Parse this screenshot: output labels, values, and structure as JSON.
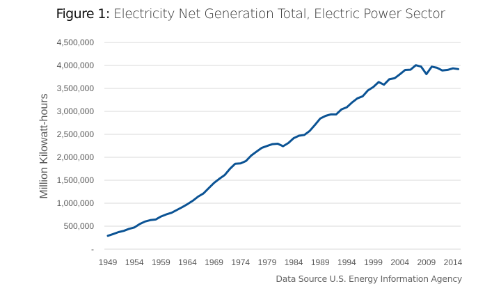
{
  "title": {
    "lead": "Figure 1:",
    "rest": " Electricity Net Generation Total, Electric Power Sector"
  },
  "source": "Data Source U.S. Energy Information Agency",
  "colors": {
    "line": "#0b5394",
    "grid": "#d9d9d9",
    "text": "#595959"
  },
  "chart_data": {
    "type": "line",
    "title": "Figure 1: Electricity Net Generation Total, Electric Power Sector",
    "xlabel": "",
    "ylabel": "Million Kilowatt-hours",
    "ylim": [
      0,
      4500000
    ],
    "yticks": [
      0,
      500000,
      1000000,
      1500000,
      2000000,
      2500000,
      3000000,
      3500000,
      4000000,
      4500000
    ],
    "ytick_labels": [
      "-",
      "500,000",
      "1,000,000",
      "1,500,000",
      "2,000,000",
      "2,500,000",
      "3,000,000",
      "3,500,000",
      "4,000,000",
      "4,500,000"
    ],
    "xlim": [
      1949,
      2015
    ],
    "xtick_labels": [
      "1949",
      "1954",
      "1959",
      "1964",
      "1969",
      "1974",
      "1979",
      "1984",
      "1989",
      "1994",
      "1999",
      "2004",
      "2009",
      "2014"
    ],
    "grid": true,
    "legend": "none",
    "series": [
      {
        "name": "Electricity Net Generation Total, Electric Power Sector",
        "x": [
          1949,
          1950,
          1951,
          1952,
          1953,
          1954,
          1955,
          1956,
          1957,
          1958,
          1959,
          1960,
          1961,
          1962,
          1963,
          1964,
          1965,
          1966,
          1967,
          1968,
          1969,
          1970,
          1971,
          1972,
          1973,
          1974,
          1975,
          1976,
          1977,
          1978,
          1979,
          1980,
          1981,
          1982,
          1983,
          1984,
          1985,
          1986,
          1987,
          1988,
          1989,
          1990,
          1991,
          1992,
          1993,
          1994,
          1995,
          1996,
          1997,
          1998,
          1999,
          2000,
          2001,
          2002,
          2003,
          2004,
          2005,
          2006,
          2007,
          2008,
          2009,
          2010,
          2011,
          2012,
          2013,
          2014,
          2015
        ],
        "values": [
          291000,
          329000,
          371000,
          399000,
          443000,
          472000,
          547000,
          601000,
          632000,
          645000,
          710000,
          756000,
          792000,
          853000,
          914000,
          980000,
          1055000,
          1144000,
          1214000,
          1329000,
          1442000,
          1532000,
          1613000,
          1750000,
          1861000,
          1867000,
          1918000,
          2038000,
          2124000,
          2206000,
          2247000,
          2286000,
          2295000,
          2241000,
          2310000,
          2416000,
          2470000,
          2487000,
          2572000,
          2704000,
          2844000,
          2901000,
          2935000,
          2934000,
          3044000,
          3089000,
          3194000,
          3284000,
          3329000,
          3457000,
          3530000,
          3638000,
          3580000,
          3698000,
          3721000,
          3808000,
          3902000,
          3908000,
          4005000,
          3974000,
          3810000,
          3972000,
          3948000,
          3890000,
          3903000,
          3937000,
          3920000
        ]
      }
    ]
  }
}
